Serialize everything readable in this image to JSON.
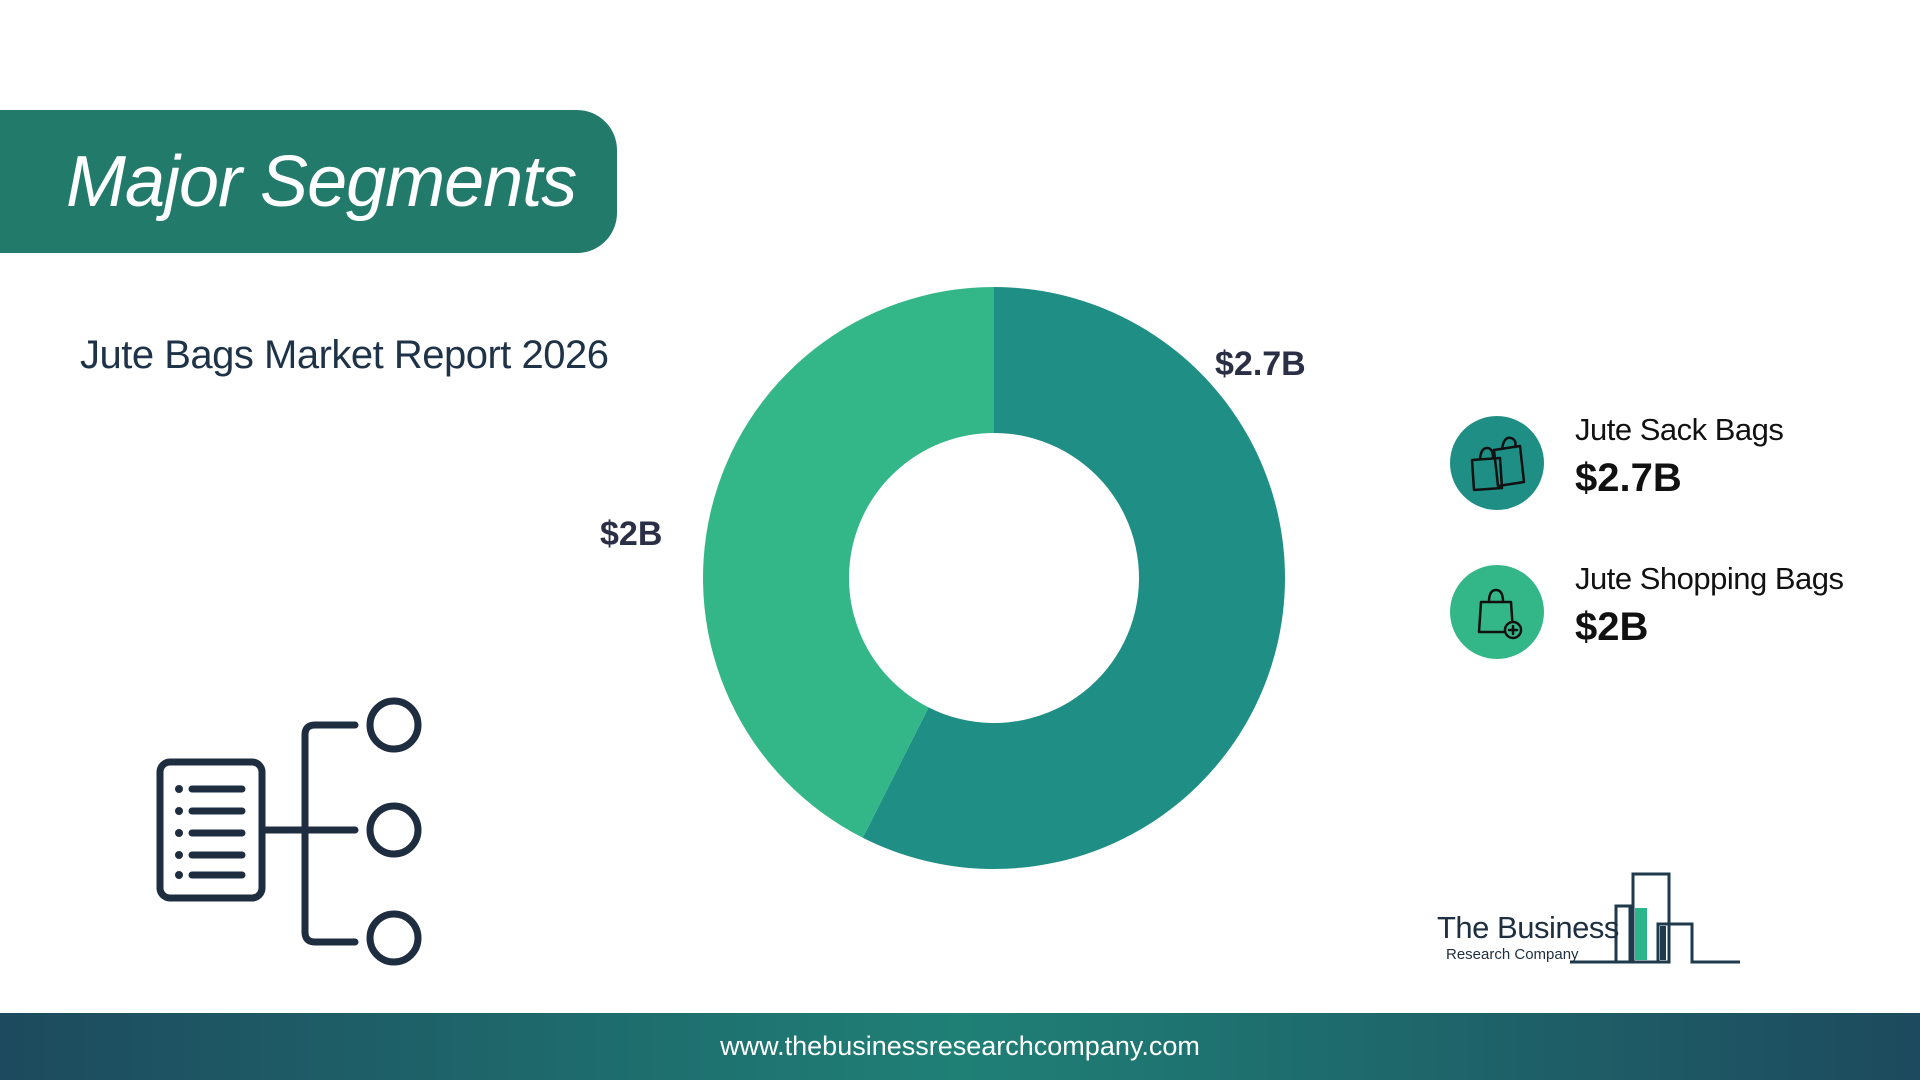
{
  "header": {
    "title": "Major Segments"
  },
  "subtitle": "Jute Bags Market Report 2026",
  "chart_data": {
    "type": "pie",
    "variant": "donut",
    "categories": [
      "Jute Sack Bags",
      "Jute Shopping Bags"
    ],
    "values": [
      2.7,
      2.0
    ],
    "data_labels": [
      "$2.7B",
      "$2B"
    ],
    "colors": [
      "#1f8f86",
      "#34b788"
    ],
    "start": "top, clockwise",
    "legend_position": "right"
  },
  "legend": [
    {
      "name": "Jute Sack Bags",
      "value": "$2.7B",
      "color": "#1f8f86",
      "icon": "shopping-bags-icon"
    },
    {
      "name": "Jute Shopping Bags",
      "value": "$2B",
      "color": "#34b788",
      "icon": "shopping-bag-add-icon"
    }
  ],
  "decorative_icon": "segments-tree-icon",
  "logo": {
    "line1": "The Business",
    "line2": "Research Company"
  },
  "footer": {
    "url": "www.thebusinessresearchcompany.com"
  }
}
